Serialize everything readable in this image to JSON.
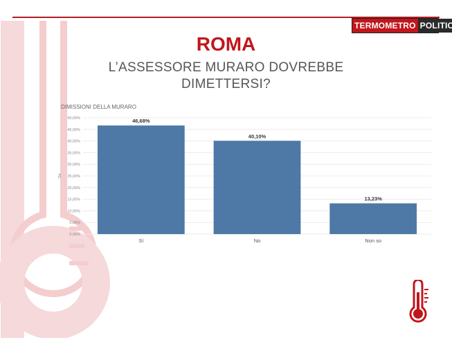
{
  "brand": {
    "logo_part1": "TERMOMETRO",
    "logo_part2": "POLITICO",
    "accent_color": "#c0161c"
  },
  "header": {
    "title": "ROMA",
    "subtitle": "L’ASSESSORE MURARO DOVREBBE DIMETTERSI?"
  },
  "chart_data": {
    "type": "bar",
    "title": "DIMISSIONI DELLA MURARO",
    "ylabel": "Tot",
    "xlabel": "",
    "categories": [
      "Sì",
      "No",
      "Non so"
    ],
    "values": [
      46.68,
      40.1,
      13.23
    ],
    "data_labels": [
      "46,68%",
      "40,10%",
      "13,23%"
    ],
    "ylim": [
      0,
      50
    ],
    "yticks": [
      "0,00%",
      "5,00%",
      "10,00%",
      "15,00%",
      "20,00%",
      "25,00%",
      "30,00%",
      "35,00%",
      "40,00%",
      "45,00%",
      "50,00%"
    ],
    "ytick_values": [
      0,
      5,
      10,
      15,
      20,
      25,
      30,
      35,
      40,
      45,
      50
    ],
    "bar_color": "#4e79a7",
    "grid": true,
    "legend": "none"
  },
  "icons": {
    "background": "thermometer-watermark-icon",
    "corner": "thermometer-icon"
  }
}
